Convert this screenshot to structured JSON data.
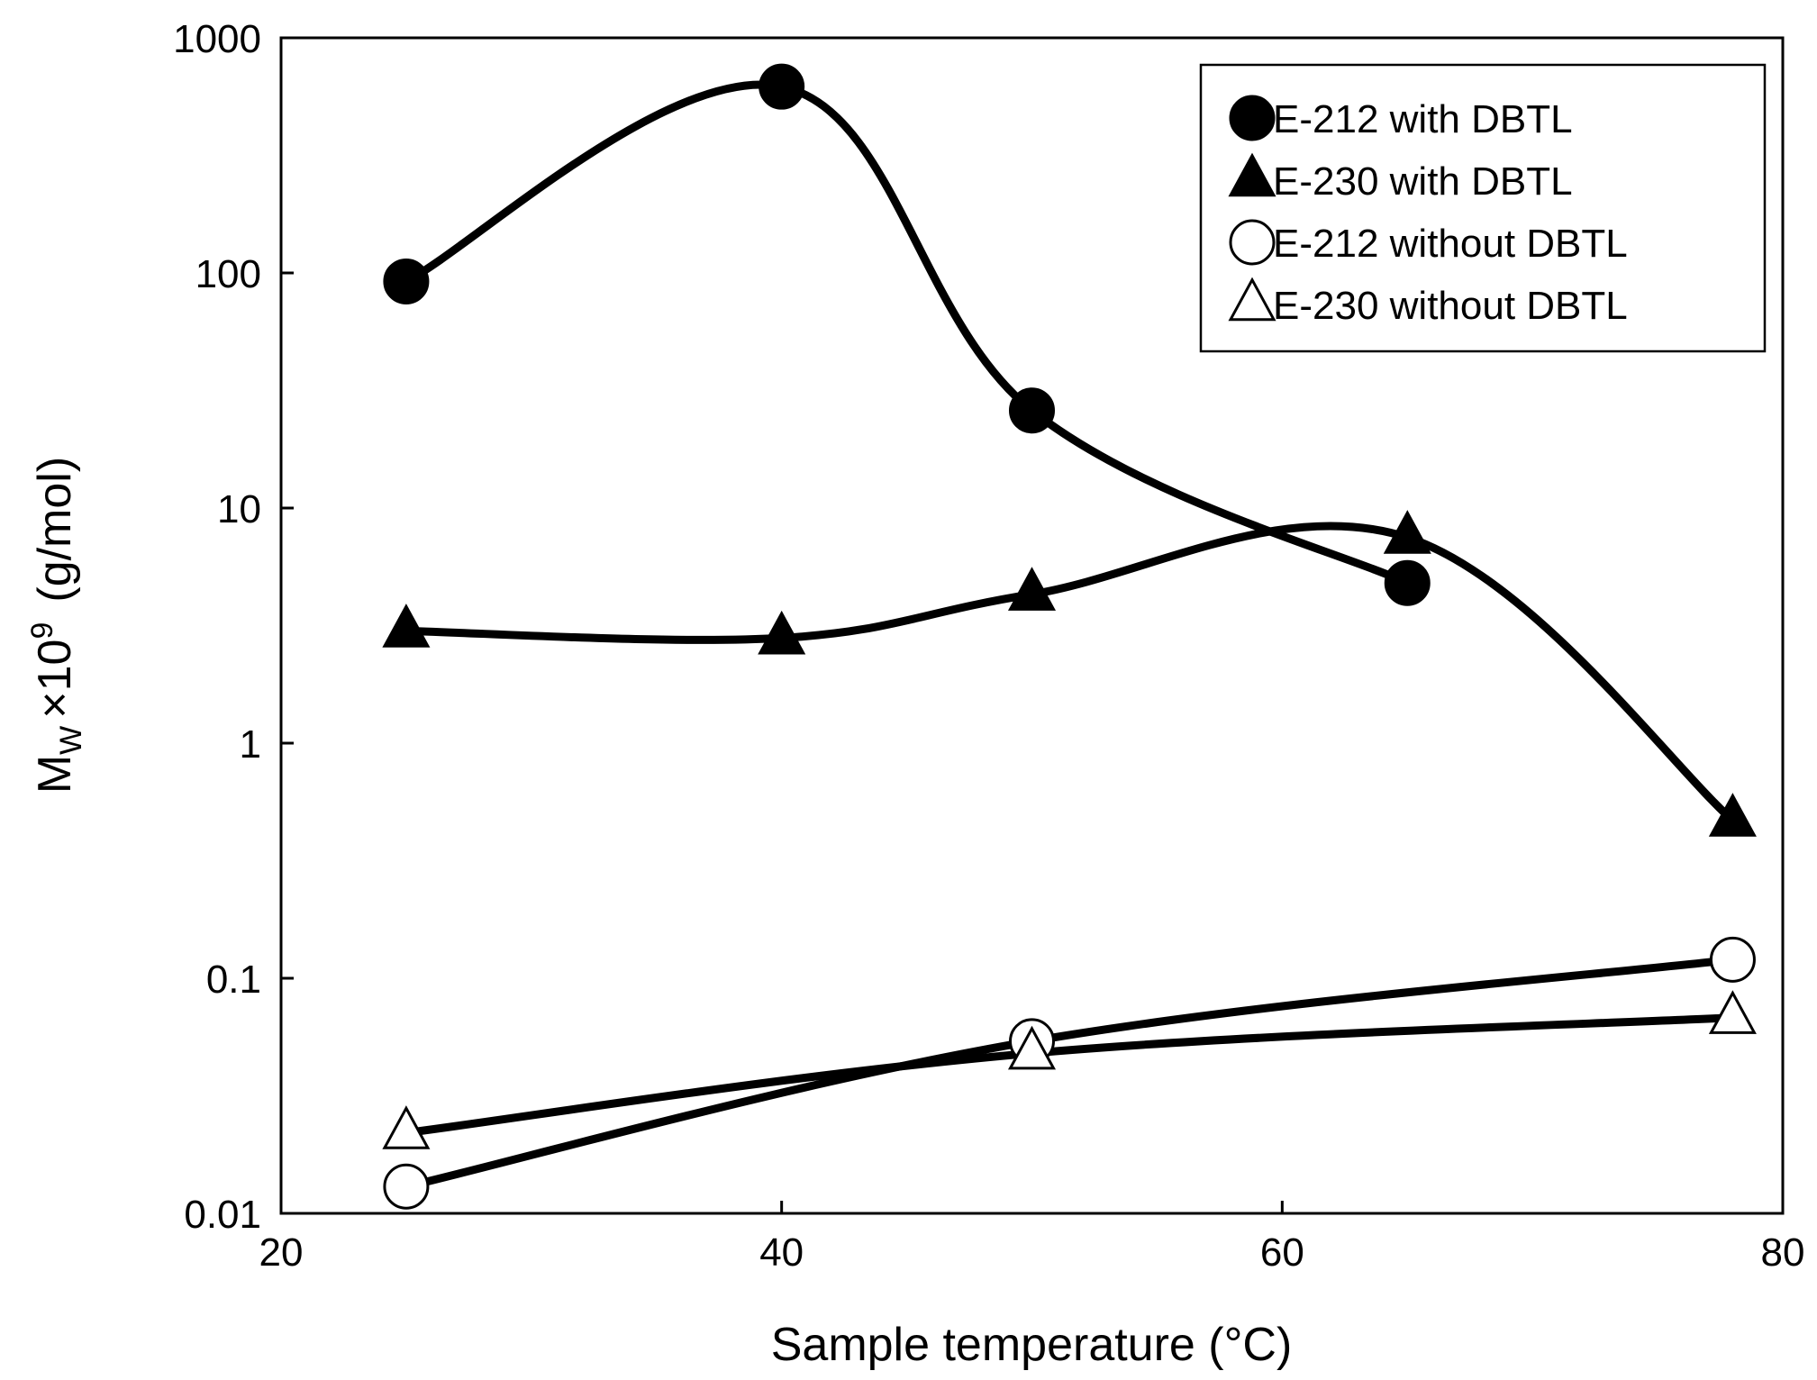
{
  "chart_data": {
    "type": "line",
    "title": "",
    "xlabel": "Sample temperature (°C)",
    "ylabel": {
      "main": "M",
      "sub": "W",
      "times": "×10",
      "exp": "9",
      "unit": "(g/mol)"
    },
    "xlim": [
      20,
      80
    ],
    "ylim": [
      0.01,
      1000
    ],
    "yscale": "log",
    "x_ticks": [
      20,
      40,
      60,
      80
    ],
    "x_tick_labels": [
      "20",
      "40",
      "60",
      "80"
    ],
    "y_ticks": [
      0.01,
      0.1,
      1,
      10,
      100,
      1000
    ],
    "y_tick_labels": [
      "0.01",
      "0.1",
      "1",
      "10",
      "100",
      "1000"
    ],
    "grid": false,
    "legend_position": "top-right",
    "series": [
      {
        "name": "E-212 with DBTL",
        "marker": "circle",
        "filled": true,
        "x": [
          25,
          40,
          50,
          65
        ],
        "y": [
          92,
          620,
          26,
          4.8
        ]
      },
      {
        "name": "E-230 with DBTL",
        "marker": "triangle",
        "filled": true,
        "x": [
          25,
          40,
          50,
          65,
          78
        ],
        "y": [
          3.0,
          2.8,
          4.3,
          7.5,
          0.47
        ]
      },
      {
        "name": "E-212 without DBTL",
        "marker": "circle",
        "filled": false,
        "x": [
          25,
          50,
          78
        ],
        "y": [
          0.013,
          0.054,
          0.12
        ]
      },
      {
        "name": "E-230 without DBTL",
        "marker": "triangle",
        "filled": false,
        "x": [
          25,
          50,
          78
        ],
        "y": [
          0.022,
          0.048,
          0.068
        ]
      }
    ]
  }
}
